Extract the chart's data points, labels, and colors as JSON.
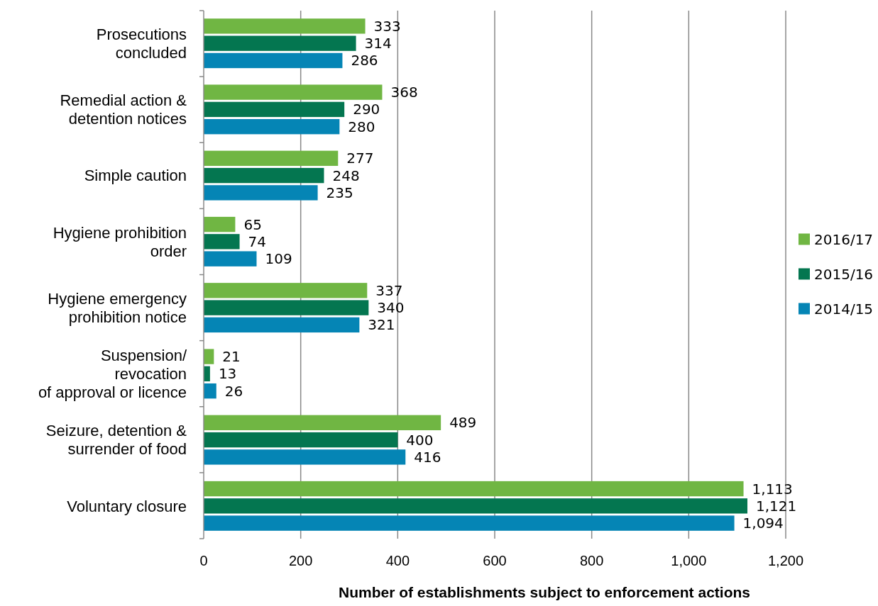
{
  "chart_data": {
    "type": "bar",
    "orientation": "horizontal",
    "xlabel": "Number of establishments subject to enforcement actions",
    "categories": [
      "Prosecutions\nconcluded",
      "Remedial action &\ndetention notices",
      "Simple caution",
      "Hygiene prohibition\norder",
      "Hygiene emergency\nprohibition notice",
      "Suspension/\nrevocation\nof approval or licence",
      "Seizure, detention &\nsurrender of food",
      "Voluntary closure"
    ],
    "series": [
      {
        "name": "2016/17",
        "color": "#70b643",
        "values": [
          333,
          368,
          277,
          65,
          337,
          21,
          489,
          1113
        ],
        "value_labels": [
          "333",
          "368",
          "277",
          "65",
          "337",
          "21",
          "489",
          "1,113"
        ]
      },
      {
        "name": "2015/16",
        "color": "#047650",
        "values": [
          314,
          290,
          248,
          74,
          340,
          13,
          400,
          1121
        ],
        "value_labels": [
          "314",
          "290",
          "248",
          "74",
          "340",
          "13",
          "400",
          "1,121"
        ]
      },
      {
        "name": "2014/15",
        "color": "#0585b5",
        "values": [
          286,
          280,
          235,
          109,
          321,
          26,
          416,
          1094
        ],
        "value_labels": [
          "286",
          "280",
          "235",
          "109",
          "321",
          "26",
          "416",
          "1,094"
        ]
      }
    ],
    "xlim": [
      0,
      1200
    ],
    "xticks": [
      0,
      200,
      400,
      600,
      800,
      {
        "value": 1000,
        "label": "1,000"
      },
      {
        "value": 1200,
        "label": "1,200"
      }
    ],
    "grid": "x",
    "legend": "right"
  }
}
